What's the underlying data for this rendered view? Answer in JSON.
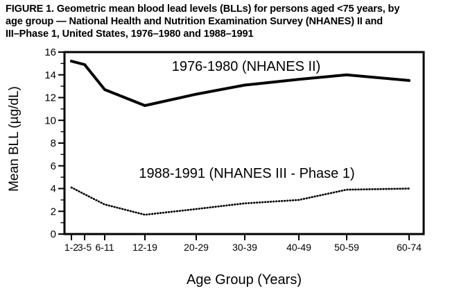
{
  "figure": {
    "title_lines": [
      "FIGURE 1. Geometric mean blood lead levels (BLLs) for persons aged <75 years, by",
      "age group — National Health and Nutrition Examination Survey (NHANES) II and",
      "III–Phase 1, United States, 1976–1980 and 1988–1991"
    ]
  },
  "chart_data": {
    "type": "line",
    "title": "",
    "categories": [
      "1-2",
      "3-5",
      "6-11",
      "12-19",
      "20-29",
      "30-39",
      "40-49",
      "50-59",
      "60-74"
    ],
    "xlabel": "Age Group (Years)",
    "ylabel": "Mean BLL (µg/dL)",
    "ylim": [
      0,
      16
    ],
    "y_tick_step": 2,
    "y_minor_tick_step": 1,
    "y_tick_labels": [
      "0",
      "2",
      "4",
      "6",
      "8",
      "10",
      "12",
      "14",
      "16"
    ],
    "grid": false,
    "legend_position": "inline-labels",
    "x_axis_spacing": "proportional-to-age-midpoint",
    "series": [
      {
        "name": "1976-1980 (NHANES II)",
        "line_style": "solid",
        "values": [
          15.2,
          14.9,
          12.7,
          11.3,
          12.3,
          13.1,
          13.6,
          14.0,
          13.5
        ]
      },
      {
        "name": "1988-1991 (NHANES III - Phase 1)",
        "line_style": "dotted",
        "values": [
          4.1,
          3.5,
          2.6,
          1.7,
          2.2,
          2.7,
          3.0,
          3.9,
          4.0
        ]
      }
    ],
    "colors": {
      "line": "#000000",
      "background": "#ffffff",
      "text": "#000000"
    }
  }
}
